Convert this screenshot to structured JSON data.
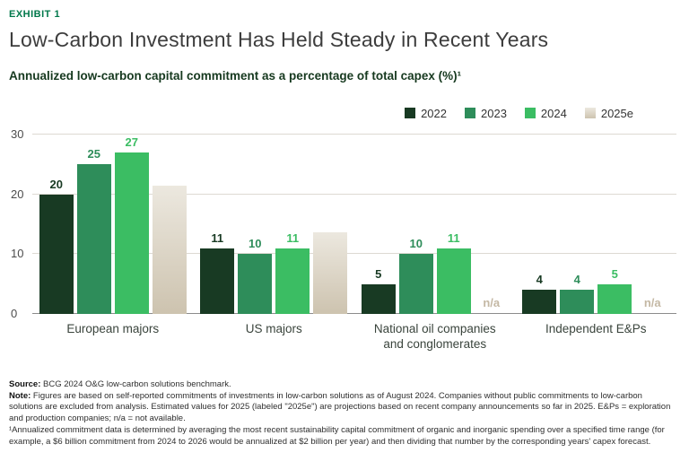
{
  "header": {
    "exhibit_label": "EXHIBIT 1",
    "title": "Low-Carbon Investment Has Held Steady in Recent Years",
    "subtitle": "Annualized low-carbon capital commitment as a percentage of total capex (%)¹"
  },
  "colors": {
    "accent_green": "#00784b",
    "title_text": "#3d3d3d",
    "subtitle_text": "#16391f",
    "grid_line": "#ddd9d2",
    "axis_line": "#8c8c8c",
    "tick_text": "#4c4c4c",
    "category_text": "#3a443c",
    "na_label": "#c4b8a4",
    "estimated_top": "#ece8df",
    "estimated_bottom": "#cdc3af",
    "footnote_text": "#2e2e2e"
  },
  "chart_data": {
    "type": "bar",
    "title": "Annualized low-carbon capital commitment as a percentage of total capex (%)",
    "categories": [
      "European majors",
      "US majors",
      "National oil companies and conglomerates",
      "Independent E&Ps"
    ],
    "series": [
      {
        "name": "2022",
        "color": "#183a23",
        "values": [
          20,
          11,
          5,
          4
        ],
        "labels": [
          "20",
          "11",
          "5",
          "4"
        ]
      },
      {
        "name": "2023",
        "color": "#2e8d5a",
        "values": [
          25,
          10,
          10,
          4
        ],
        "labels": [
          "25",
          "10",
          "10",
          "4"
        ]
      },
      {
        "name": "2024",
        "color": "#3bbd63",
        "values": [
          27,
          11,
          11,
          5
        ],
        "labels": [
          "27",
          "11",
          "11",
          "5"
        ]
      },
      {
        "name": "2025e",
        "color": "#d7cfc0",
        "estimated": true,
        "values": [
          21.5,
          13.7,
          null,
          null
        ],
        "labels": [
          "",
          "",
          "n/a",
          "n/a"
        ]
      }
    ],
    "ylim": [
      0,
      30
    ],
    "yticks": [
      0,
      10,
      20,
      30
    ],
    "ylabel": "",
    "xlabel": "",
    "grid": true,
    "legend_position": "top-right"
  },
  "footnotes": {
    "source_label": "Source:",
    "source_text": " BCG 2024 O&G low-carbon solutions benchmark.",
    "note_label": "Note:",
    "note_text": " Figures are based on self-reported commitments of investments in low-carbon solutions as of August 2024. Companies without public commitments to low-carbon solutions are excluded from analysis. Estimated values for 2025 (labeled \"2025e\") are projections based on recent company announcements so far in 2025. E&Ps = exploration and production companies; n/a = not available.",
    "footnote1": "¹Annualized commitment data is determined by averaging the most recent sustainability capital commitment of organic and inorganic spending over a specified time range (for example, a $6 billion commitment from 2024 to 2026 would be annualized at $2 billion per year) and then dividing that number by the corresponding years' capex forecast."
  }
}
